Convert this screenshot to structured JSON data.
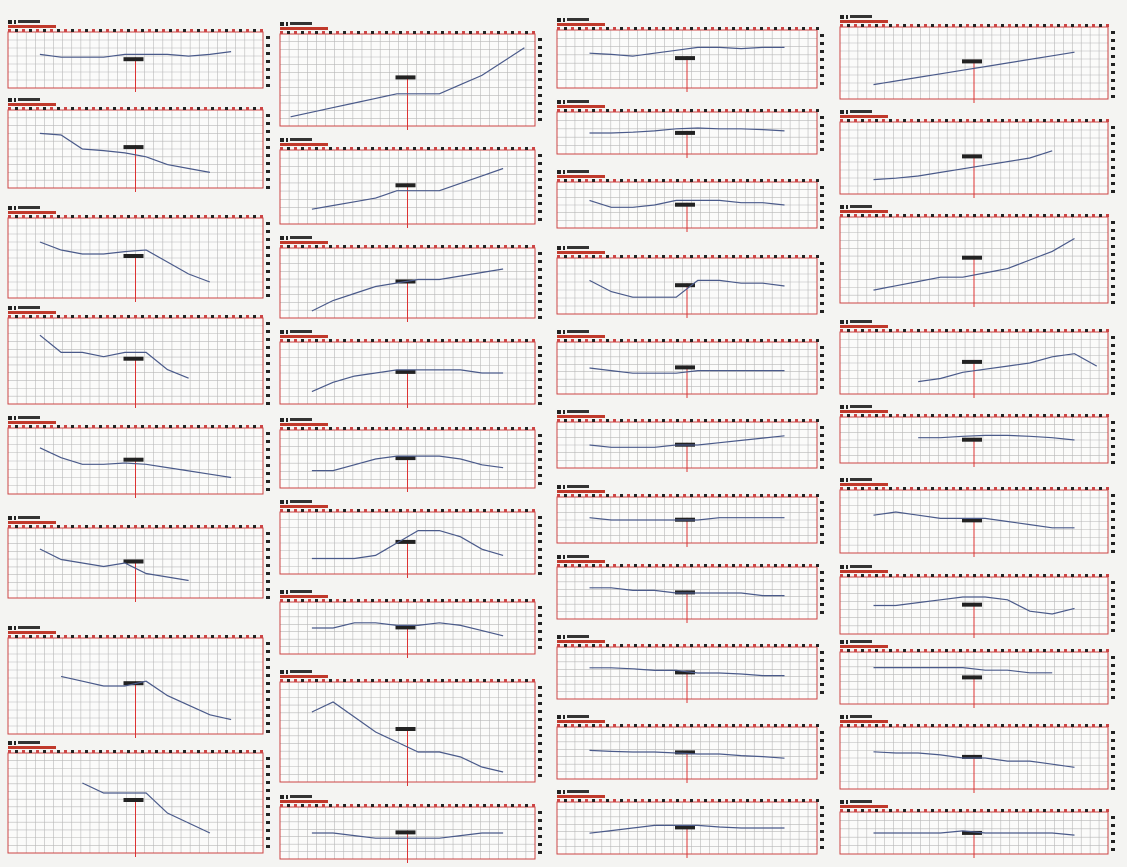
{
  "chart_data": [
    {
      "type": "line",
      "ylim": [
        0,
        10
      ],
      "values": [
        null,
        6,
        5.5,
        5.5,
        5.5,
        6,
        6,
        6,
        5.7,
        6,
        6.5,
        null
      ]
    },
    {
      "type": "line",
      "ylim": [
        0,
        10
      ],
      "values": [
        null,
        7,
        6.8,
        5,
        4.8,
        4.5,
        4,
        3,
        2.5,
        2,
        null,
        null
      ]
    },
    {
      "type": "line",
      "ylim": [
        0,
        10
      ],
      "values": [
        null,
        7,
        6,
        5.5,
        5.5,
        5.8,
        6,
        4.5,
        3,
        2,
        null,
        null
      ]
    },
    {
      "type": "line",
      "ylim": [
        0,
        10
      ],
      "values": [
        null,
        8,
        6,
        6,
        5.5,
        6,
        6,
        4,
        3,
        null,
        null,
        null
      ]
    },
    {
      "type": "line",
      "ylim": [
        0,
        10
      ],
      "values": [
        null,
        7,
        5.5,
        4.5,
        4.5,
        4.7,
        4.5,
        4,
        3.5,
        3,
        2.5,
        null
      ]
    },
    {
      "type": "line",
      "ylim": [
        0,
        10
      ],
      "values": [
        null,
        7,
        5.5,
        5,
        4.5,
        5,
        3.5,
        3,
        2.5,
        null,
        null,
        null
      ]
    },
    {
      "type": "line",
      "ylim": [
        0,
        10
      ],
      "values": [
        null,
        null,
        6,
        5.5,
        5,
        5,
        5.5,
        4,
        3,
        2,
        1.5,
        null
      ]
    },
    {
      "type": "line",
      "ylim": [
        0,
        10
      ],
      "values": [
        null,
        null,
        null,
        7,
        6,
        6,
        6,
        4,
        3,
        2,
        null,
        null
      ]
    },
    {
      "type": "line",
      "ylim": [
        0,
        10
      ],
      "values": [
        1,
        1.5,
        2,
        2.5,
        3,
        3.5,
        3.5,
        3.5,
        4.5,
        5.5,
        7,
        8.5
      ]
    },
    {
      "type": "line",
      "ylim": [
        0,
        10
      ],
      "values": [
        null,
        2,
        2.5,
        3,
        3.5,
        4.5,
        4.5,
        4.5,
        5.5,
        6.5,
        7.5,
        null
      ]
    },
    {
      "type": "line",
      "ylim": [
        0,
        10
      ],
      "values": [
        null,
        1,
        2.5,
        3.5,
        4.5,
        5,
        5.5,
        5.5,
        6,
        6.5,
        7,
        null
      ]
    },
    {
      "type": "line",
      "ylim": [
        0,
        10
      ],
      "values": [
        null,
        2,
        3.5,
        4.5,
        5,
        5.5,
        5.5,
        5.5,
        5.5,
        5,
        5,
        null
      ]
    },
    {
      "type": "line",
      "ylim": [
        0,
        10
      ],
      "values": [
        null,
        3,
        3,
        4,
        5,
        5.5,
        5.5,
        5.5,
        5,
        4,
        3.5,
        null
      ]
    },
    {
      "type": "line",
      "ylim": [
        0,
        10
      ],
      "values": [
        null,
        2.5,
        2.5,
        2.5,
        3,
        5,
        7,
        7,
        6,
        4,
        3,
        null
      ]
    },
    {
      "type": "line",
      "ylim": [
        0,
        10
      ],
      "values": [
        null,
        5,
        5,
        6,
        6,
        5.5,
        5.5,
        6,
        5.5,
        4.5,
        3.5,
        null
      ]
    },
    {
      "type": "line",
      "ylim": [
        0,
        10
      ],
      "values": [
        null,
        7,
        8,
        6.5,
        5,
        4,
        3,
        3,
        2.5,
        1.5,
        1,
        null
      ]
    },
    {
      "type": "line",
      "ylim": [
        0,
        10
      ],
      "values": [
        null,
        5,
        5,
        4.5,
        4,
        4,
        4,
        4,
        4.5,
        5,
        5,
        null
      ]
    },
    {
      "type": "line",
      "ylim": [
        0,
        10
      ],
      "values": [
        null,
        6,
        5.8,
        5.5,
        6,
        6.5,
        7,
        7,
        6.8,
        7,
        7,
        null
      ]
    },
    {
      "type": "line",
      "ylim": [
        0,
        10
      ],
      "values": [
        null,
        5,
        5,
        5.2,
        5.5,
        6,
        6.2,
        6,
        6,
        5.8,
        5.5,
        null
      ]
    },
    {
      "type": "line",
      "ylim": [
        0,
        10
      ],
      "values": [
        null,
        6,
        4.5,
        4.5,
        5,
        6,
        6,
        6,
        5.5,
        5.5,
        5,
        null
      ]
    },
    {
      "type": "line",
      "ylim": [
        0,
        10
      ],
      "values": [
        null,
        6,
        4,
        3,
        3,
        3,
        6,
        6,
        5.5,
        5.5,
        5,
        null
      ]
    },
    {
      "type": "line",
      "ylim": [
        0,
        10
      ],
      "values": [
        null,
        5,
        4.5,
        4,
        4,
        4,
        4.5,
        4.5,
        4.5,
        4.5,
        4.5,
        null
      ]
    },
    {
      "type": "line",
      "ylim": [
        0,
        10
      ],
      "values": [
        null,
        5,
        4.5,
        4.5,
        4.5,
        5,
        5,
        5.5,
        6,
        6.5,
        7,
        null
      ]
    },
    {
      "type": "line",
      "ylim": [
        0,
        10
      ],
      "values": [
        null,
        5.5,
        5,
        5,
        5,
        5,
        5,
        5.5,
        5.5,
        5.5,
        5.5,
        null
      ]
    },
    {
      "type": "line",
      "ylim": [
        0,
        10
      ],
      "values": [
        null,
        6,
        6,
        5.5,
        5.5,
        5,
        5,
        5,
        5,
        4.5,
        4.5,
        null
      ]
    },
    {
      "type": "line",
      "ylim": [
        0,
        10
      ],
      "values": [
        null,
        6,
        6,
        5.8,
        5.5,
        5.5,
        5,
        5,
        4.8,
        4.5,
        4.5,
        null
      ]
    },
    {
      "type": "line",
      "ylim": [
        0,
        10
      ],
      "values": [
        null,
        5.5,
        5.3,
        5.2,
        5.2,
        5,
        4.8,
        4.8,
        4.5,
        4.3,
        4,
        null
      ]
    },
    {
      "type": "line",
      "ylim": [
        0,
        10
      ],
      "values": [
        null,
        4,
        4.5,
        5,
        5.5,
        5.5,
        5.5,
        5.2,
        5,
        5,
        5,
        null
      ]
    },
    {
      "type": "line",
      "ylim": [
        0,
        10
      ],
      "values": [
        null,
        2,
        2.5,
        3,
        3.5,
        4,
        4.5,
        5,
        5.5,
        6,
        6.5,
        null
      ]
    },
    {
      "type": "line",
      "ylim": [
        0,
        10
      ],
      "values": [
        null,
        2,
        2.2,
        2.5,
        3,
        3.5,
        4,
        4.5,
        5,
        6,
        null,
        null
      ]
    },
    {
      "type": "line",
      "ylim": [
        0,
        10
      ],
      "values": [
        null,
        1.5,
        2,
        2.5,
        3,
        3,
        3.5,
        4,
        5,
        6,
        7.5,
        null
      ]
    },
    {
      "type": "line",
      "ylim": [
        0,
        10
      ],
      "values": [
        null,
        null,
        null,
        2,
        2.5,
        3.5,
        4,
        4.5,
        5,
        6,
        6.5,
        4.5
      ]
    },
    {
      "type": "line",
      "ylim": [
        0,
        10
      ],
      "values": [
        null,
        null,
        null,
        5.5,
        5.5,
        5.8,
        6,
        6,
        5.8,
        5.5,
        5,
        null
      ]
    },
    {
      "type": "line",
      "ylim": [
        0,
        10
      ],
      "values": [
        null,
        6,
        6.5,
        6,
        5.5,
        5.5,
        5.5,
        5,
        4.5,
        4,
        4,
        null
      ]
    },
    {
      "type": "line",
      "ylim": [
        0,
        10
      ],
      "values": [
        null,
        5,
        5,
        5.5,
        6,
        6.5,
        6.5,
        6,
        4,
        3.5,
        4.5,
        null
      ]
    },
    {
      "type": "line",
      "ylim": [
        0,
        10
      ],
      "values": [
        null,
        7,
        7,
        7,
        7,
        7,
        6.5,
        6.5,
        6,
        6,
        null,
        null
      ]
    },
    {
      "type": "line",
      "ylim": [
        0,
        10
      ],
      "values": [
        null,
        6,
        5.8,
        5.8,
        5.5,
        5,
        5,
        4.5,
        4.5,
        4,
        3.5,
        null
      ]
    },
    {
      "type": "line",
      "ylim": [
        0,
        10
      ],
      "values": [
        null,
        5,
        5,
        5,
        5,
        5.5,
        5,
        5,
        5,
        5,
        4.5,
        null
      ]
    }
  ]
}
